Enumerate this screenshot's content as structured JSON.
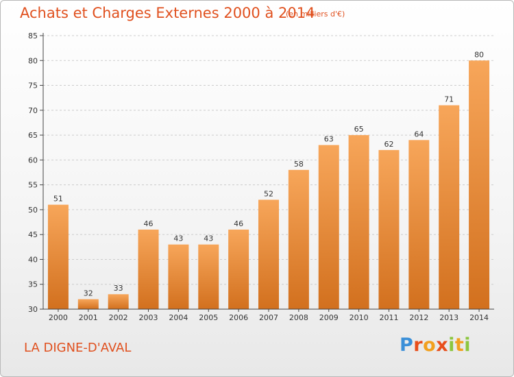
{
  "header": {
    "title": "Achats et Charges Externes 2000 à 2014",
    "subtitle": "(en milliers d'€)"
  },
  "footer": {
    "place": "LA DIGNE-D'AVAL",
    "brand_letters": [
      "P",
      "r",
      "o",
      "x",
      "i",
      "t",
      "i"
    ]
  },
  "colors": {
    "title": "#e0501e",
    "bar_top": "#f7a65a",
    "bar_bottom": "#d2701e",
    "grid": "#cccccc"
  },
  "chart_data": {
    "type": "bar",
    "title": "Achats et Charges Externes 2000 à 2014",
    "subtitle": "(en milliers d'€)",
    "xlabel": "",
    "ylabel": "",
    "categories": [
      "2000",
      "2001",
      "2002",
      "2003",
      "2004",
      "2005",
      "2006",
      "2007",
      "2008",
      "2009",
      "2010",
      "2011",
      "2012",
      "2013",
      "2014"
    ],
    "values": [
      51,
      32,
      33,
      46,
      43,
      43,
      46,
      52,
      58,
      63,
      65,
      62,
      64,
      71,
      80
    ],
    "ylim": [
      30,
      85
    ],
    "yticks": [
      30,
      35,
      40,
      45,
      50,
      55,
      60,
      65,
      70,
      75,
      80,
      85
    ],
    "grid": "horizontal-dashed",
    "legend": "none"
  }
}
